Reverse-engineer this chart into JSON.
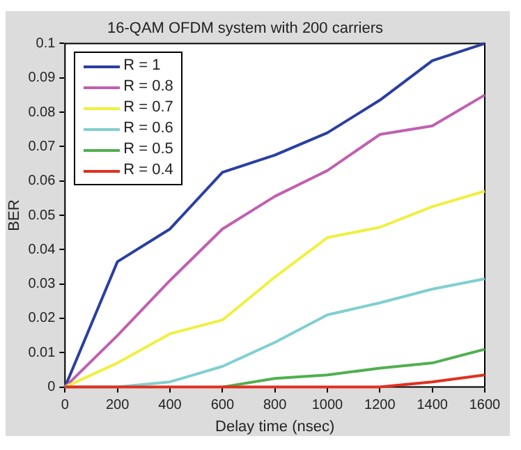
{
  "chart_data": {
    "type": "line",
    "title": "16-QAM OFDM system with 200 carriers",
    "xlabel": "Delay time (nsec)",
    "ylabel": "BER",
    "x": [
      0,
      200,
      400,
      600,
      800,
      1000,
      1200,
      1400,
      1600
    ],
    "series": [
      {
        "name": "R = 1",
        "color": "#2a3fa0",
        "values": [
          0,
          0.0365,
          0.046,
          0.0625,
          0.0675,
          0.074,
          0.0835,
          0.095,
          0.1
        ]
      },
      {
        "name": "R = 0.8",
        "color": "#c060b0",
        "values": [
          0,
          0.015,
          0.031,
          0.046,
          0.0555,
          0.063,
          0.0735,
          0.076,
          0.085
        ]
      },
      {
        "name": "R = 0.7",
        "color": "#f0f040",
        "values": [
          0,
          0.007,
          0.0155,
          0.0195,
          0.032,
          0.0435,
          0.0465,
          0.0525,
          0.057
        ]
      },
      {
        "name": "R = 0.6",
        "color": "#80d0d0",
        "values": [
          0,
          0,
          0.0015,
          0.006,
          0.013,
          0.021,
          0.0245,
          0.0285,
          0.0315
        ]
      },
      {
        "name": "R = 0.5",
        "color": "#50b050",
        "values": [
          null,
          null,
          null,
          0,
          0.0025,
          0.0035,
          0.0055,
          0.007,
          0.011
        ]
      },
      {
        "name": "R = 0.4",
        "color": "#e03020",
        "values": [
          0,
          0,
          0,
          0,
          0,
          0,
          0,
          0.0015,
          0.0035
        ]
      }
    ],
    "xlim": [
      0,
      1600
    ],
    "xticks": [
      0,
      200,
      400,
      600,
      800,
      1000,
      1200,
      1400,
      1600
    ],
    "ylim": [
      0,
      0.1
    ],
    "yticks": [
      0,
      0.01,
      0.02,
      0.03,
      0.04,
      0.05,
      0.06,
      0.07,
      0.08,
      0.09,
      0.1
    ],
    "grid": false,
    "legend": "top left",
    "marker": "none",
    "line_style": "solid"
  }
}
